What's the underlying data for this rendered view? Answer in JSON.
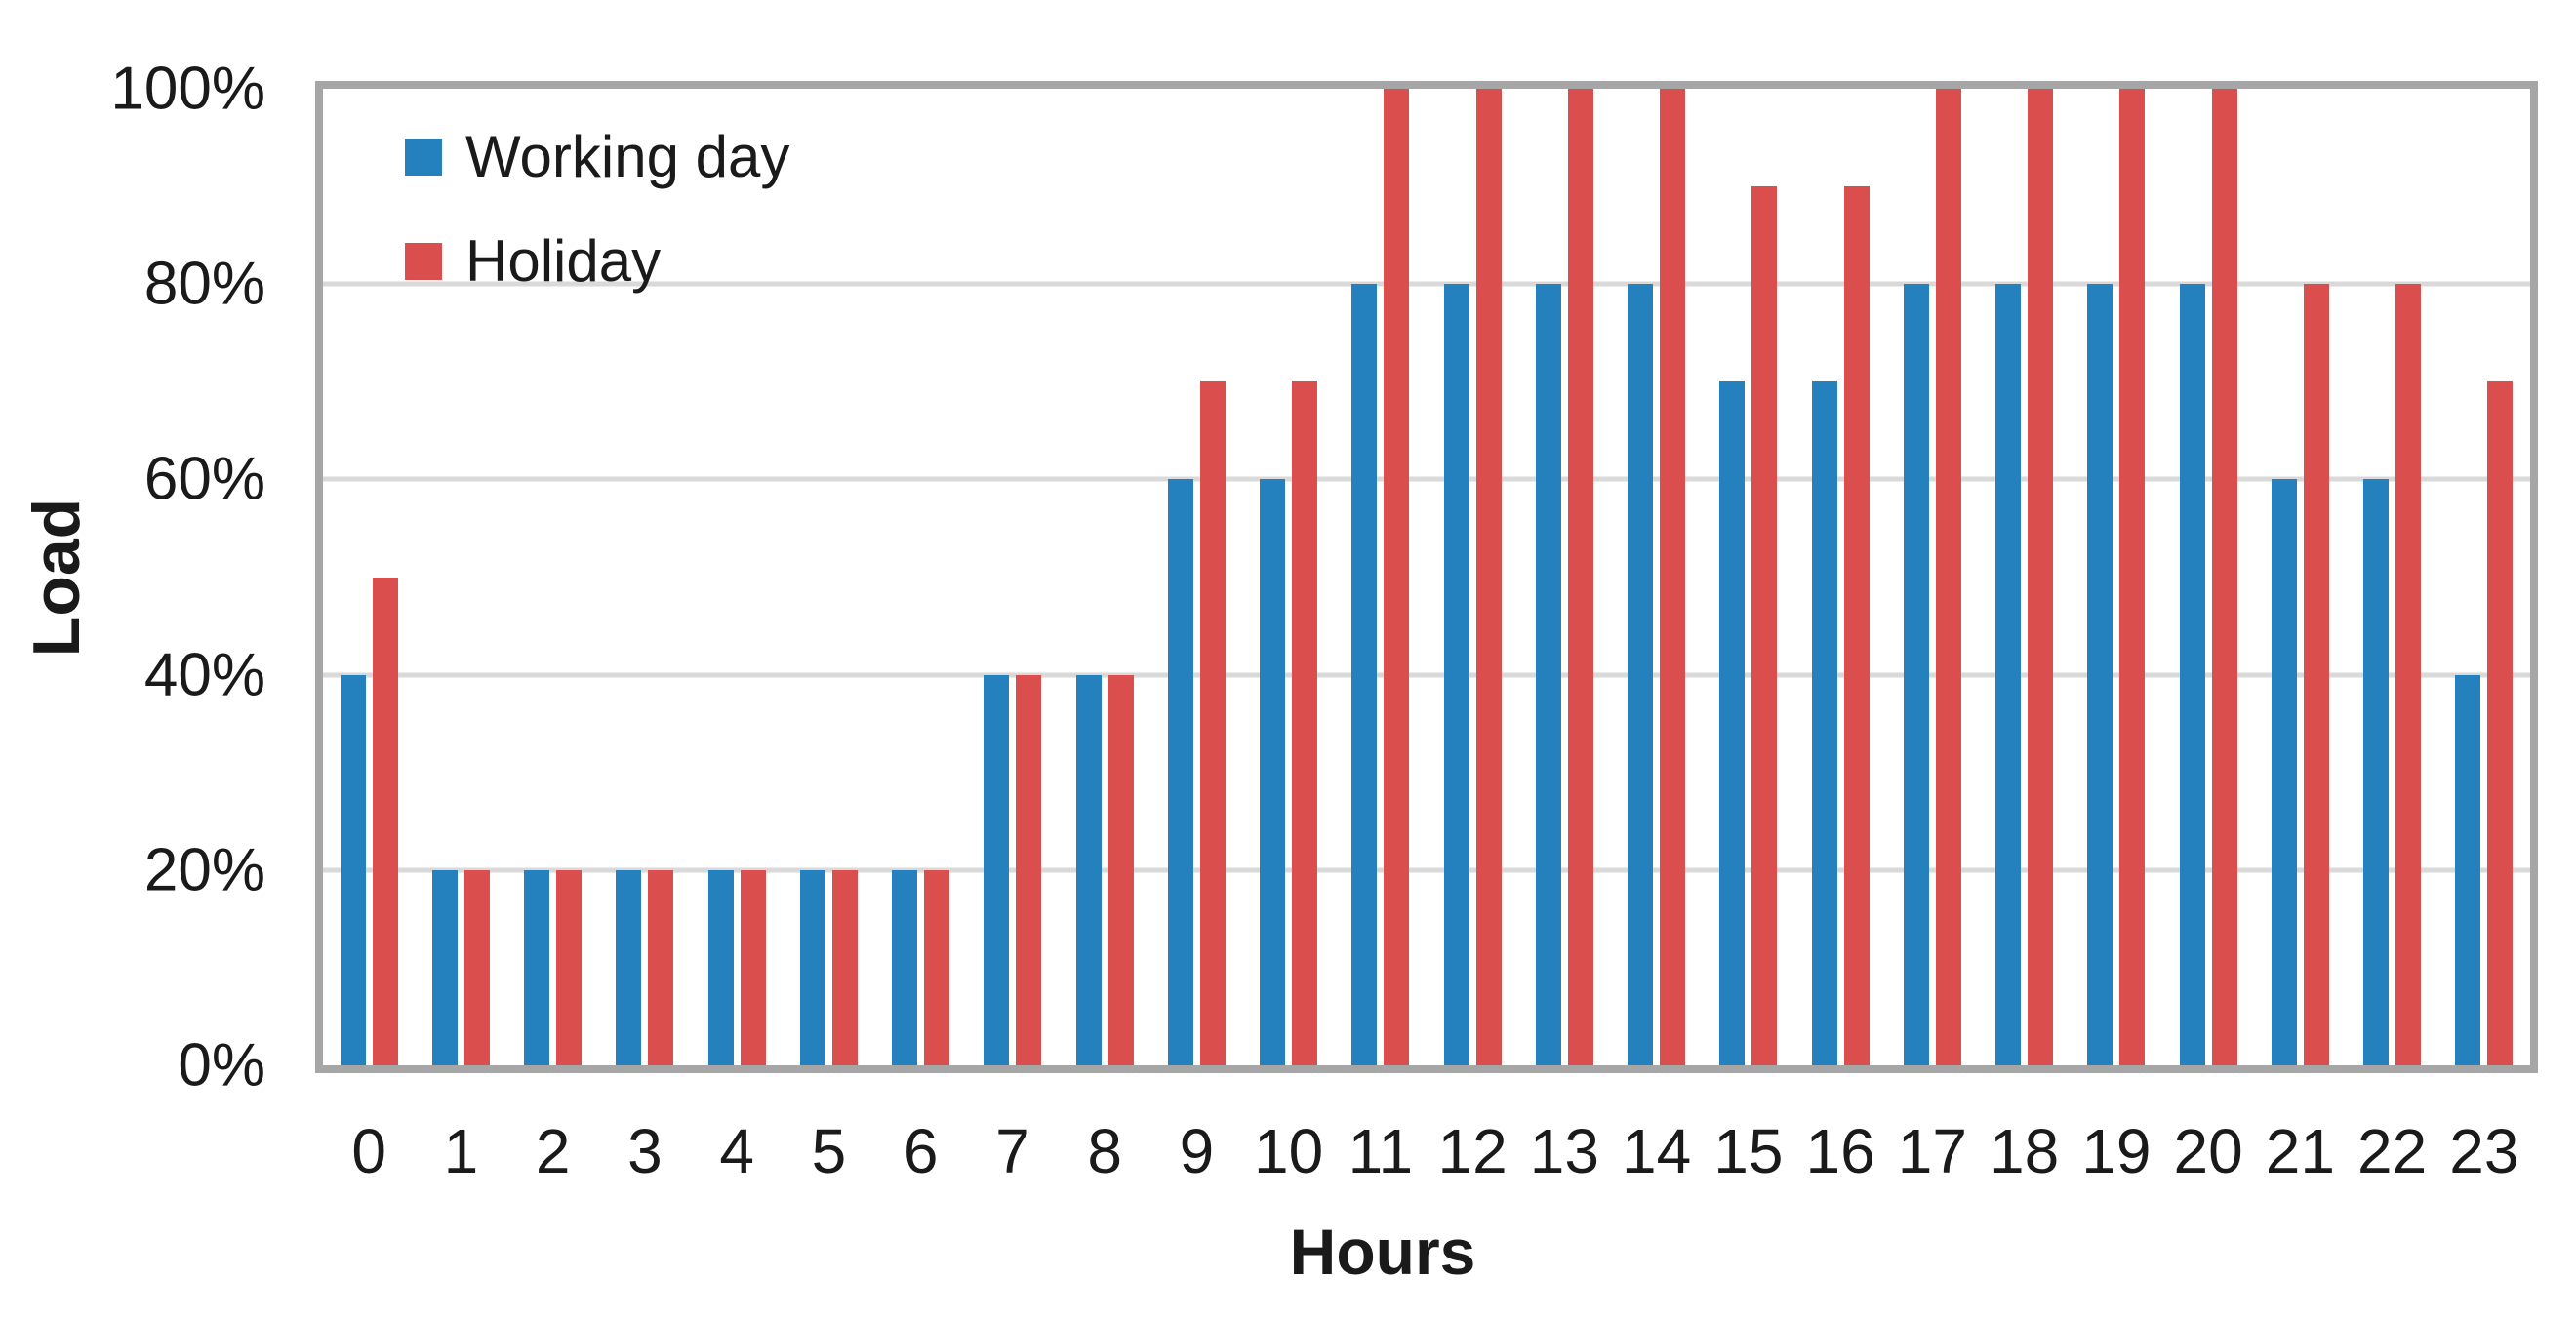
{
  "figure": {
    "background": "#FFFFFF",
    "border_color": "#A6A6A6",
    "gridline_color": "#D9D9D9",
    "text_color": "#1A1A1A"
  },
  "chart_data": {
    "type": "bar",
    "title": "",
    "xlabel": "Hours",
    "ylabel": "Load",
    "categories": [
      "0",
      "1",
      "2",
      "3",
      "4",
      "5",
      "6",
      "7",
      "8",
      "9",
      "10",
      "11",
      "12",
      "13",
      "14",
      "15",
      "16",
      "17",
      "18",
      "19",
      "20",
      "21",
      "22",
      "23"
    ],
    "series": [
      {
        "name": "Working day",
        "color": "#2580BE",
        "values": [
          40,
          20,
          20,
          20,
          20,
          20,
          20,
          40,
          40,
          60,
          60,
          80,
          80,
          80,
          80,
          70,
          70,
          80,
          80,
          80,
          80,
          60,
          60,
          40
        ]
      },
      {
        "name": "Holiday",
        "color": "#DB4E4E",
        "values": [
          50,
          20,
          20,
          20,
          20,
          20,
          20,
          40,
          40,
          70,
          70,
          100,
          100,
          100,
          100,
          90,
          90,
          100,
          100,
          100,
          100,
          80,
          80,
          70
        ]
      }
    ],
    "y_ticks": [
      "0%",
      "20%",
      "40%",
      "60%",
      "80%",
      "100%"
    ],
    "y_tick_values": [
      0,
      20,
      40,
      60,
      80,
      100
    ],
    "gridline_values": [
      20,
      40,
      60,
      80
    ],
    "ylim": [
      0,
      100
    ],
    "grid": true,
    "legend_position": "top-left-inside"
  }
}
